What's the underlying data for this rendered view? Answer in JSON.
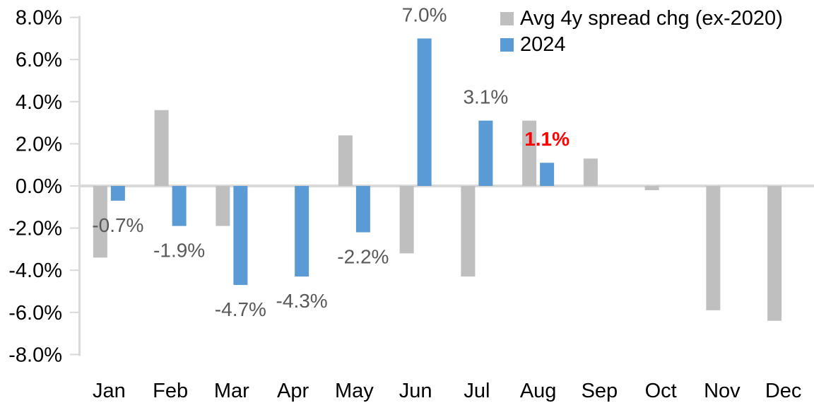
{
  "chart_data": {
    "type": "bar",
    "title": "",
    "categories": [
      "Jan",
      "Feb",
      "Mar",
      "Apr",
      "May",
      "Jun",
      "Jul",
      "Aug",
      "Sep",
      "Oct",
      "Nov",
      "Dec"
    ],
    "series": [
      {
        "name": "Avg 4y spread chg (ex-2020)",
        "color": "#BFBFBF",
        "values": [
          -3.4,
          3.6,
          -1.9,
          0.0,
          2.4,
          -3.2,
          -4.3,
          3.1,
          1.3,
          -0.2,
          -5.9,
          -6.4
        ]
      },
      {
        "name": "2024",
        "color": "#5B9BD5",
        "values": [
          -0.7,
          -1.9,
          -4.7,
          -4.3,
          -2.2,
          7.0,
          3.1,
          1.1,
          null,
          null,
          null,
          null
        ]
      }
    ],
    "data_labels": [
      {
        "month_index": 0,
        "text": "-0.7%",
        "color": "#595959",
        "bold": false
      },
      {
        "month_index": 1,
        "text": "-1.9%",
        "color": "#595959",
        "bold": false
      },
      {
        "month_index": 2,
        "text": "-4.7%",
        "color": "#595959",
        "bold": false
      },
      {
        "month_index": 3,
        "text": "-4.3%",
        "color": "#595959",
        "bold": false
      },
      {
        "month_index": 4,
        "text": "-2.2%",
        "color": "#595959",
        "bold": false
      },
      {
        "month_index": 5,
        "text": "7.0%",
        "color": "#595959",
        "bold": false
      },
      {
        "month_index": 6,
        "text": "3.1%",
        "color": "#595959",
        "bold": false
      },
      {
        "month_index": 7,
        "text": "1.1%",
        "color": "#FF0000",
        "bold": true
      }
    ],
    "y_ticks": [
      "8.0%",
      "6.0%",
      "4.0%",
      "2.0%",
      "0.0%",
      "-2.0%",
      "-4.0%",
      "-6.0%",
      "-8.0%"
    ],
    "y_tick_values": [
      8,
      6,
      4,
      2,
      0,
      -2,
      -4,
      -6,
      -8
    ],
    "ylim": [
      -8,
      8
    ],
    "grid": false,
    "legend_position": "top-right",
    "axis_color": "#D9D9D9",
    "axis_text_color": "#000000"
  }
}
